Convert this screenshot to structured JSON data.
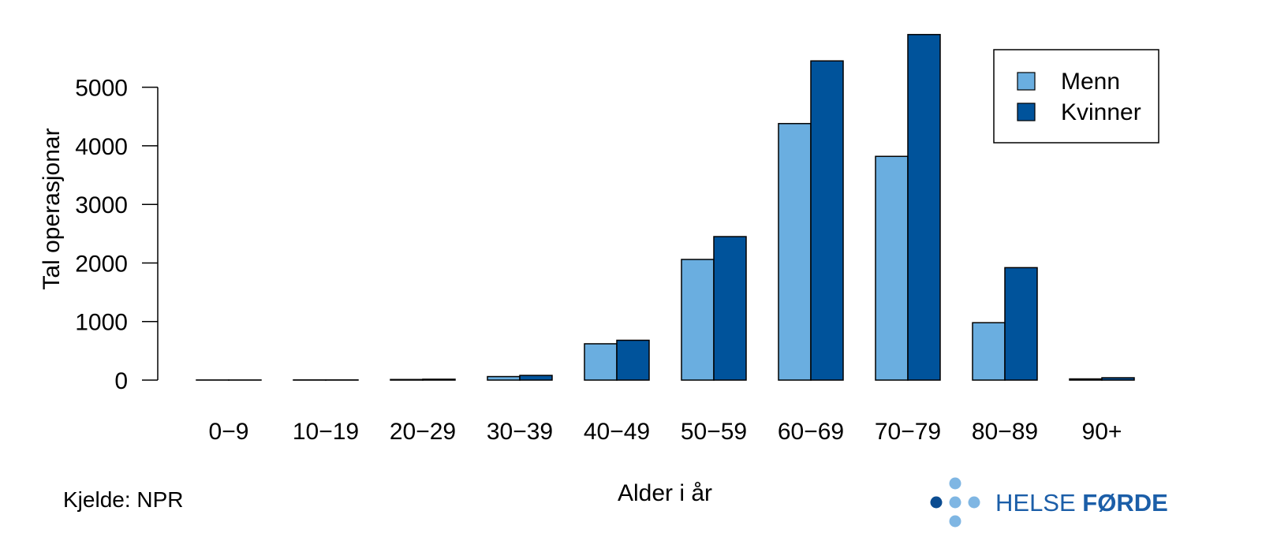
{
  "chart_data": {
    "type": "bar",
    "title": "",
    "xlabel": "Alder i år",
    "ylabel": "Tal operasjonar",
    "categories": [
      "0−9",
      "10−19",
      "20−29",
      "30−39",
      "40−49",
      "50−59",
      "60−69",
      "70−79",
      "80−89",
      "90+"
    ],
    "series": [
      {
        "name": "Menn",
        "color": "#6aaee0",
        "values": [
          2,
          3,
          10,
          60,
          620,
          2060,
          4380,
          3820,
          980,
          20
        ]
      },
      {
        "name": "Kvinner",
        "color": "#00539b",
        "values": [
          2,
          3,
          15,
          80,
          680,
          2450,
          5450,
          5900,
          1920,
          40
        ]
      }
    ],
    "yticks": [
      "0",
      "1000",
      "2000",
      "3000",
      "4000",
      "5000"
    ],
    "ytick_values": [
      0,
      1000,
      2000,
      3000,
      4000,
      5000
    ],
    "ylim": [
      0,
      5900
    ],
    "grid": false,
    "legend_position": "top-right"
  },
  "footer": {
    "source": "Kjelde: NPR",
    "logo_text_regular": "HELSE ",
    "logo_text_bold": "FØRDE",
    "logo_color": "#1b5ea8",
    "logo_dot_light": "#7fb6e3",
    "logo_dot_dark": "#0b4c91"
  }
}
